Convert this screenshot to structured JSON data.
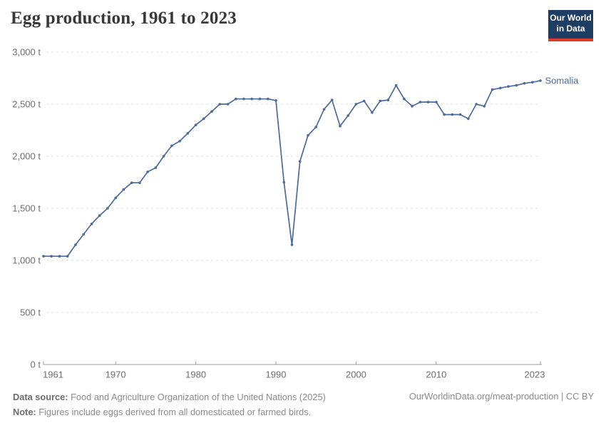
{
  "header": {
    "title": "Egg production, 1961 to 2023",
    "logo": {
      "line1": "Our World",
      "line2": "in Data"
    }
  },
  "chart_data": {
    "type": "line",
    "title": "Egg production, 1961 to 2023",
    "unit": "t",
    "x_range": [
      1961,
      2023
    ],
    "ylim": [
      0,
      3000
    ],
    "grid": "horizontal-dashed",
    "legend_position": "end-of-line-label",
    "y_ticks": [
      {
        "value": 0,
        "label": "0 t"
      },
      {
        "value": 500,
        "label": "500 t"
      },
      {
        "value": 1000,
        "label": "1,000 t"
      },
      {
        "value": 1500,
        "label": "1,500 t"
      },
      {
        "value": 2000,
        "label": "2,000 t"
      },
      {
        "value": 2500,
        "label": "2,500 t"
      },
      {
        "value": 3000,
        "label": "3,000 t"
      }
    ],
    "x_ticks": [
      1961,
      1970,
      1980,
      1990,
      2000,
      2010,
      2023
    ],
    "series": [
      {
        "name": "Somalia",
        "start_year": 1961,
        "values": [
          1040,
          1040,
          1040,
          1040,
          1150,
          1250,
          1350,
          1430,
          1500,
          1600,
          1680,
          1745,
          1745,
          1850,
          1890,
          2000,
          2100,
          2145,
          2220,
          2300,
          2360,
          2430,
          2500,
          2500,
          2550,
          2550,
          2550,
          2550,
          2550,
          2535,
          1750,
          1150,
          1950,
          2200,
          2280,
          2450,
          2540,
          2290,
          2390,
          2500,
          2530,
          2420,
          2530,
          2540,
          2680,
          2550,
          2480,
          2520,
          2520,
          2520,
          2400,
          2400,
          2400,
          2360,
          2500,
          2480,
          2640,
          2655,
          2670,
          2680,
          2700,
          2710,
          2725
        ]
      }
    ]
  },
  "colors": {
    "line": "#4c6a9c",
    "axis_text": "#6e6e6e",
    "grid": "#dedede",
    "axis_line": "#9e9e9e",
    "logo_bg": "#1d3d63",
    "logo_red": "#dc3a2b",
    "footer_text": "#8a8a8a"
  },
  "footer": {
    "source_label": "Data source:",
    "source_text": "Food and Agriculture Organization of the United Nations (2025)",
    "note_label": "Note:",
    "note_text": "Figures include eggs derived from all domesticated or farmed birds.",
    "link": "OurWorldinData.org/meat-production | CC BY"
  }
}
